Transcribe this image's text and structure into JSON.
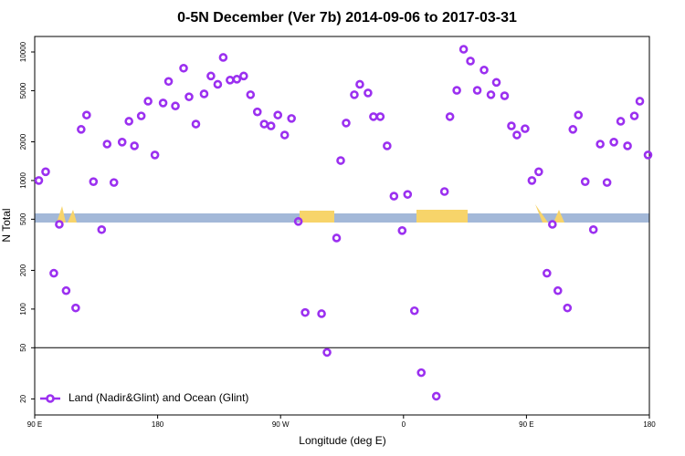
{
  "chart_data": {
    "type": "scatter",
    "title": "0-5N December (Ver 7b)   2014-09-06 to 2017-03-31",
    "xlabel": "Longitude (deg E)",
    "ylabel": "N Total",
    "log_y": true,
    "legend": "lower left",
    "series": [
      {
        "name": "Land (Nadir&Glint) and Ocean (Glint)",
        "color": "#9b30f0",
        "x": [
          93,
          98,
          104,
          108,
          113,
          120,
          124,
          128,
          133,
          139,
          143,
          148,
          154,
          159,
          163,
          168,
          173,
          178,
          184,
          188,
          193,
          199,
          203,
          208,
          214,
          219,
          224,
          228,
          233,
          238,
          243,
          248,
          253,
          258,
          263,
          268,
          273,
          278,
          283,
          288,
          300,
          304,
          311,
          314,
          318,
          324,
          328,
          334,
          338,
          343,
          348,
          353,
          359,
          363,
          368,
          373,
          384,
          390,
          394,
          399,
          404,
          409,
          414,
          419,
          424,
          428,
          434,
          439,
          443,
          449,
          454,
          459,
          465,
          469,
          473,
          480,
          484,
          488,
          493,
          499,
          504,
          509,
          514,
          519,
          524,
          529,
          533,
          539
        ],
        "values": [
          1000,
          1170,
          190,
          456,
          139,
          102,
          2500,
          3230,
          980,
          415,
          1920,
          965,
          1990,
          2890,
          1860,
          3180,
          4140,
          1580,
          4010,
          5900,
          3800,
          7480,
          4480,
          2750,
          4720,
          6500,
          5600,
          9070,
          6040,
          6140,
          6500,
          4650,
          3420,
          2750,
          2660,
          3230,
          2260,
          3040,
          480,
          94,
          92,
          46,
          357,
          1430,
          2800,
          4650,
          5600,
          4800,
          3140,
          3140,
          1860,
          756,
          408,
          780,
          97,
          32,
          21,
          821,
          3140,
          5030,
          10500,
          8500,
          5030,
          7240,
          4650,
          5800,
          4560,
          2660,
          2260,
          2530,
          1000,
          1170,
          190,
          456,
          139,
          102,
          2500,
          3230,
          980,
          415,
          1920,
          965,
          1990,
          2890,
          1860,
          3180,
          4140,
          1580
        ]
      }
    ],
    "hline": 50,
    "xlim": [
      90,
      540
    ],
    "xticks": [
      {
        "value": 90,
        "label": "90 E"
      },
      180,
      {
        "value": 270,
        "label": "90 W"
      },
      {
        "value": 360,
        "label": "0"
      },
      {
        "value": 450,
        "label": "90 E"
      },
      {
        "value": 540,
        "label": "180"
      }
    ],
    "ylim": [
      15,
      13200
    ],
    "yticks": [
      20,
      50,
      100,
      200,
      500,
      1000,
      2000,
      5000,
      10000
    ]
  }
}
